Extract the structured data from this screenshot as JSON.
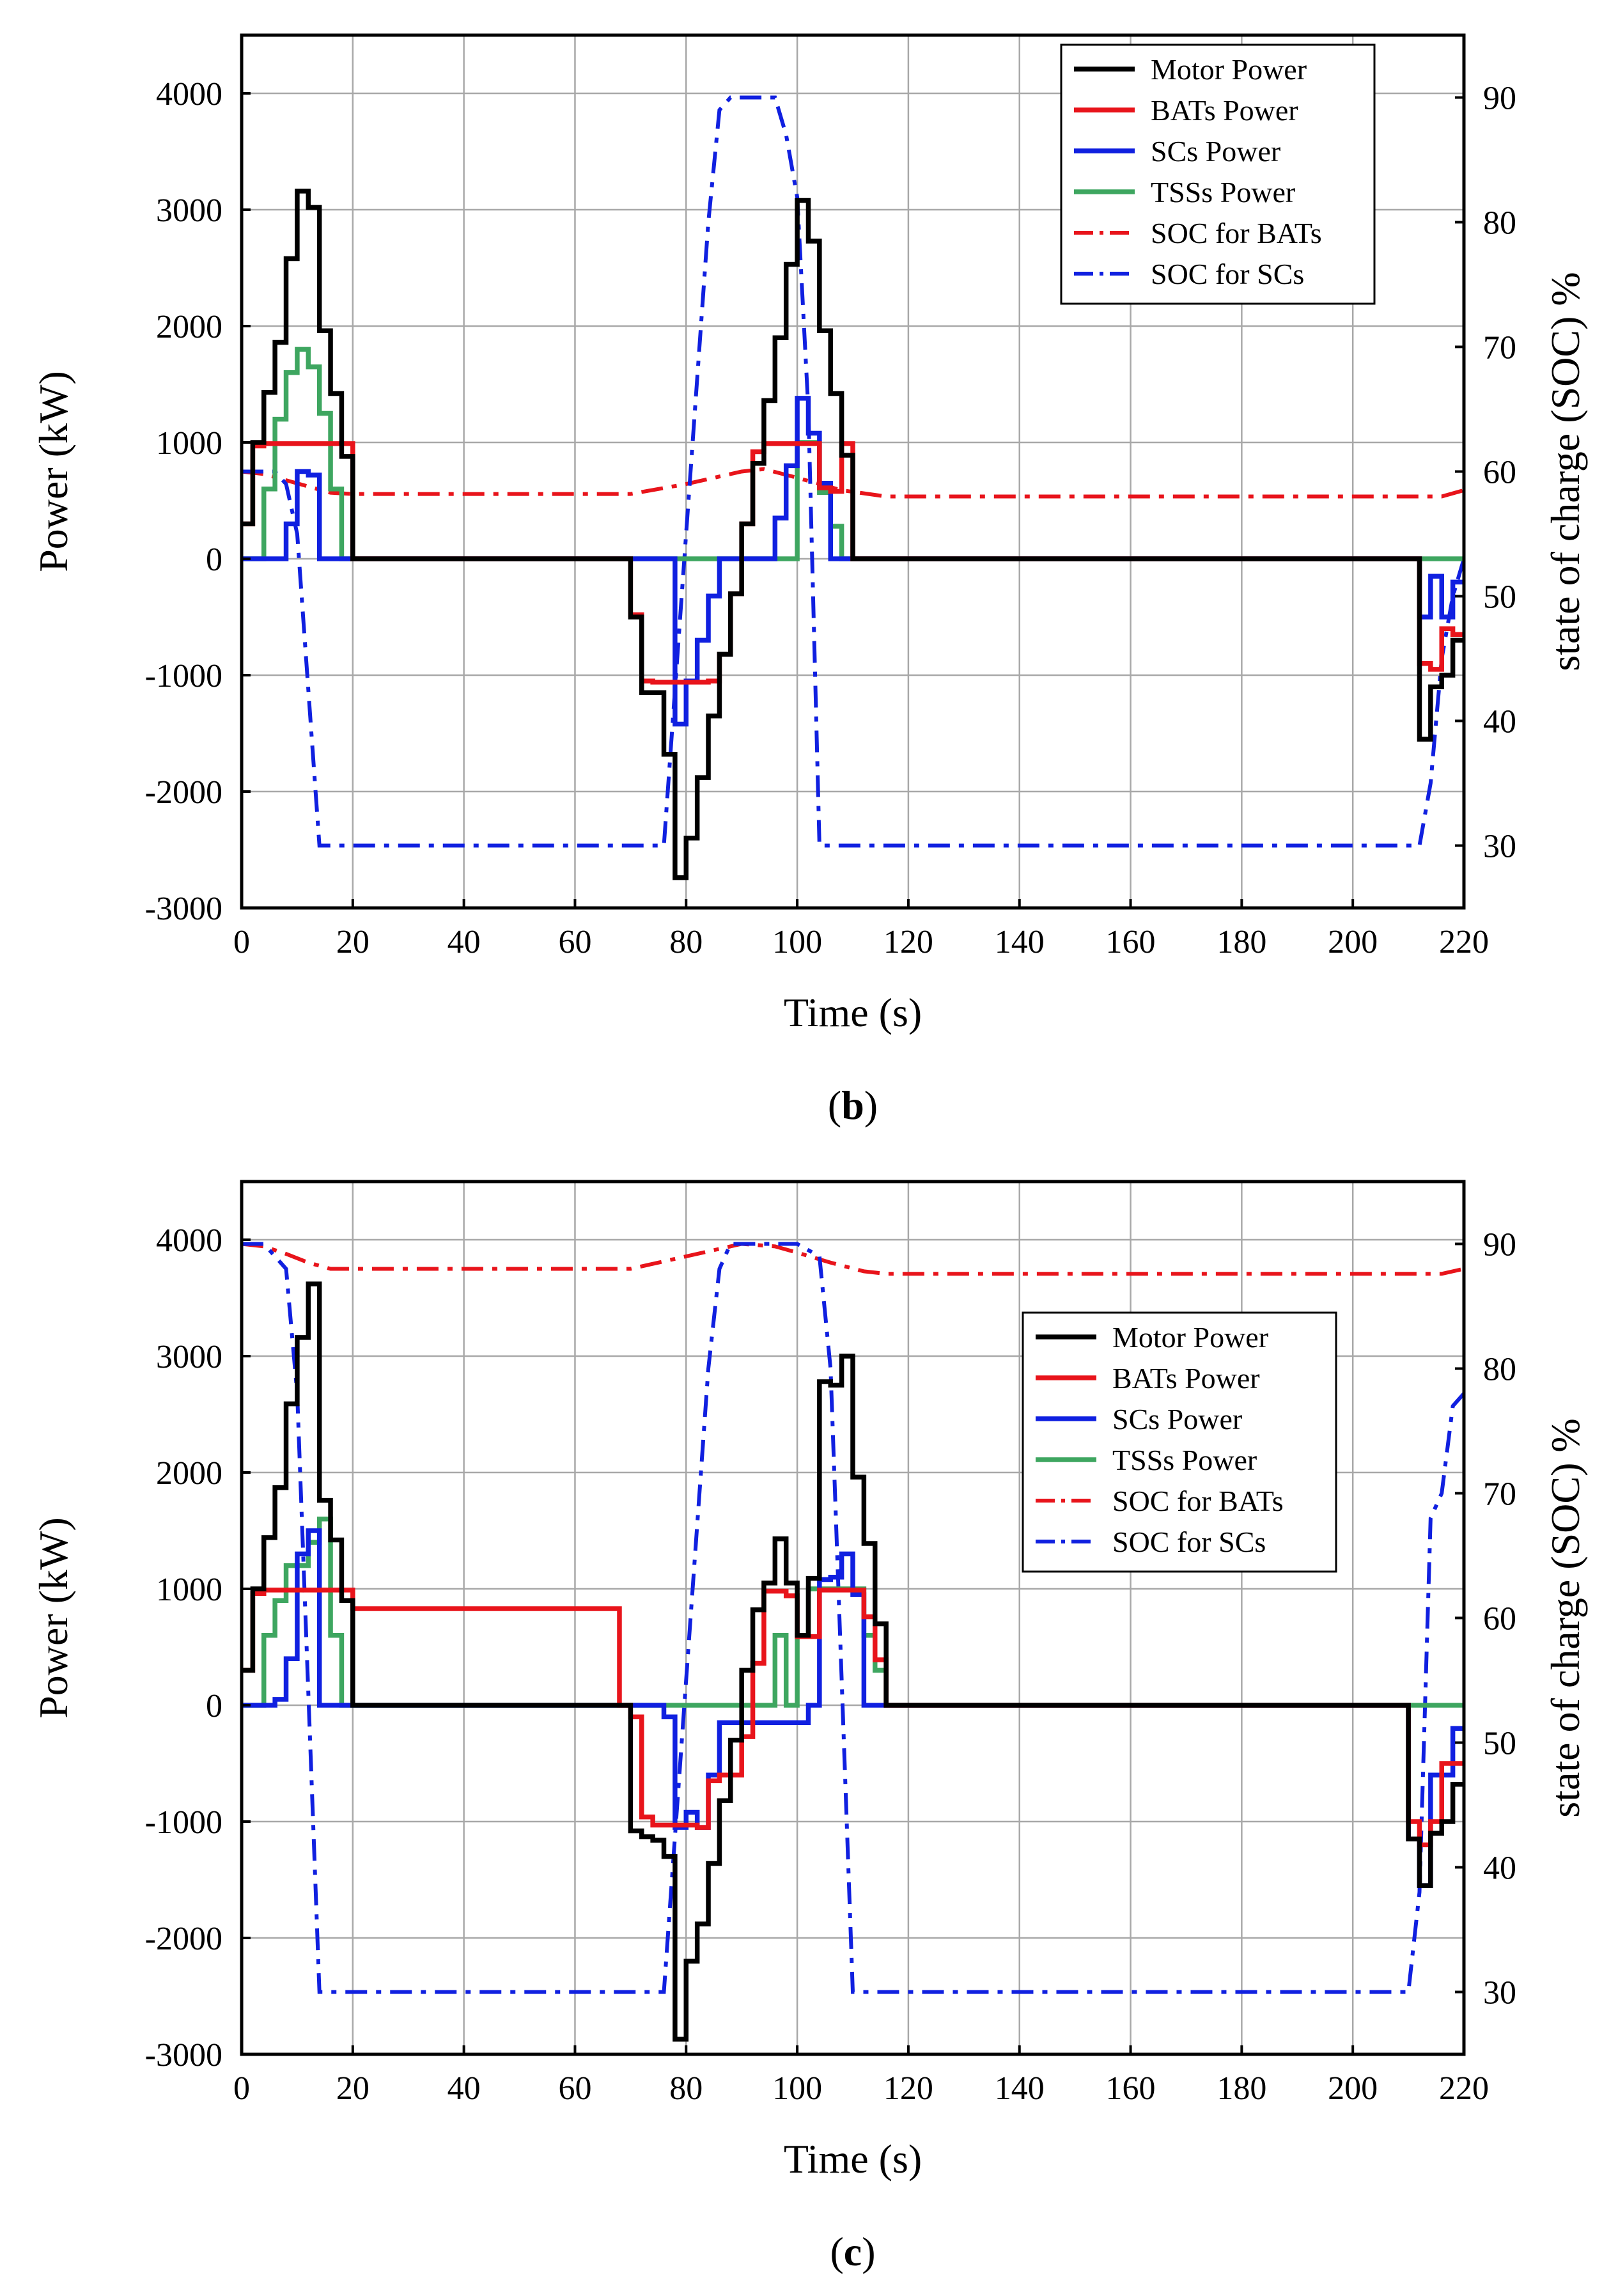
{
  "chart_data": [
    {
      "id": "b",
      "type": "line",
      "panel_label": "b",
      "xlabel": "Time (s)",
      "ylabel": "Power (kW)",
      "y2label": "state of charge (SOC) %",
      "xlim": [
        0,
        220
      ],
      "ylim": [
        -3000,
        4500
      ],
      "y2lim": [
        25,
        95
      ],
      "xticks": [
        0,
        20,
        40,
        60,
        80,
        100,
        120,
        140,
        160,
        180,
        200,
        220
      ],
      "yticks": [
        -3000,
        -2000,
        -1000,
        0,
        1000,
        2000,
        3000,
        4000
      ],
      "y2ticks": [
        30,
        40,
        50,
        60,
        70,
        80,
        90
      ],
      "grid": true,
      "legend": {
        "position": "top-right"
      },
      "series": [
        {
          "name": "Motor Power",
          "axis": "y",
          "style": "solid",
          "color": "#000000",
          "step": true,
          "x": [
            0,
            2,
            4,
            6,
            8,
            10,
            12,
            14,
            16,
            18,
            20,
            70,
            72,
            74,
            76,
            78,
            80,
            82,
            84,
            86,
            88,
            90,
            92,
            94,
            96,
            98,
            100,
            102,
            104,
            106,
            108,
            110,
            212,
            214,
            216,
            218,
            220
          ],
          "y": [
            300,
            1000,
            1430,
            1860,
            2580,
            3160,
            3020,
            1960,
            1420,
            880,
            0,
            -500,
            -1150,
            -1150,
            -1680,
            -2740,
            -2400,
            -1880,
            -1350,
            -820,
            -300,
            300,
            820,
            1360,
            1900,
            2530,
            3080,
            2730,
            1960,
            1420,
            890,
            0,
            -1550,
            -1100,
            -1000,
            -700,
            -700
          ]
        },
        {
          "name": "BATs Power",
          "axis": "y",
          "style": "solid",
          "color": "#e8141b",
          "step": true,
          "x": [
            0,
            2,
            4,
            20,
            70,
            72,
            74,
            84,
            86,
            88,
            90,
            92,
            94,
            104,
            106,
            108,
            110,
            212,
            214,
            216,
            218,
            220
          ],
          "y": [
            300,
            970,
            990,
            0,
            -480,
            -1050,
            -1060,
            -1050,
            -820,
            -300,
            300,
            920,
            990,
            610,
            580,
            990,
            0,
            -900,
            -950,
            -600,
            -650,
            -650
          ]
        },
        {
          "name": "SCs Power",
          "axis": "y",
          "style": "solid",
          "color": "#1020e0",
          "step": true,
          "x": [
            0,
            8,
            10,
            12,
            14,
            16,
            78,
            80,
            82,
            84,
            86,
            94,
            96,
            98,
            100,
            102,
            104,
            106,
            108,
            212,
            214,
            216,
            218,
            220
          ],
          "y": [
            0,
            300,
            750,
            720,
            0,
            0,
            -1420,
            -1050,
            -700,
            -320,
            0,
            0,
            350,
            800,
            1380,
            1080,
            650,
            0,
            0,
            -500,
            -150,
            -500,
            -200,
            -200
          ]
        },
        {
          "name": "TSSs Power",
          "axis": "y",
          "style": "solid",
          "color": "#3ea660",
          "step": true,
          "x": [
            0,
            4,
            6,
            8,
            10,
            12,
            14,
            16,
            18,
            98,
            100,
            102,
            104,
            106,
            108,
            220
          ],
          "y": [
            0,
            600,
            1200,
            1600,
            1800,
            1650,
            1250,
            600,
            0,
            0,
            1000,
            1000,
            570,
            280,
            0,
            0
          ]
        },
        {
          "name": "SOC for BATs",
          "axis": "y2",
          "style": "dashdot",
          "color": "#e8141b",
          "step": false,
          "x": [
            0,
            4,
            8,
            12,
            16,
            20,
            30,
            50,
            70,
            80,
            90,
            94,
            100,
            108,
            116,
            140,
            180,
            212,
            216,
            220
          ],
          "y": [
            60,
            59.8,
            59.3,
            58.8,
            58.3,
            58.2,
            58.2,
            58.2,
            58.2,
            59,
            60,
            60.2,
            59.5,
            58.5,
            58,
            58,
            58,
            58,
            58,
            58.5
          ]
        },
        {
          "name": "SOC for SCs",
          "axis": "y2",
          "style": "dashdot",
          "color": "#1020e0",
          "step": false,
          "x": [
            0,
            6,
            8,
            10,
            14,
            20,
            40,
            60,
            76,
            80,
            84,
            86,
            88,
            92,
            96,
            98,
            100,
            102,
            104,
            110,
            140,
            180,
            212,
            214,
            216,
            218,
            220
          ],
          "y": [
            60,
            60,
            59,
            55,
            30,
            30,
            30,
            30,
            30,
            55,
            80,
            89,
            90,
            90,
            90,
            87,
            82,
            65,
            30,
            30,
            30,
            30,
            30,
            35,
            45,
            50,
            53
          ]
        }
      ]
    },
    {
      "id": "c",
      "type": "line",
      "panel_label": "c",
      "xlabel": "Time (s)",
      "ylabel": "Power (kW)",
      "y2label": "state of charge (SOC) %",
      "xlim": [
        0,
        220
      ],
      "ylim": [
        -3000,
        4500
      ],
      "y2lim": [
        25,
        95
      ],
      "xticks": [
        0,
        20,
        40,
        60,
        80,
        100,
        120,
        140,
        160,
        180,
        200,
        220
      ],
      "yticks": [
        -3000,
        -2000,
        -1000,
        0,
        1000,
        2000,
        3000,
        4000
      ],
      "y2ticks": [
        30,
        40,
        50,
        60,
        70,
        80,
        90
      ],
      "grid": true,
      "legend": {
        "position": "center-right"
      },
      "series": [
        {
          "name": "Motor Power",
          "axis": "y",
          "style": "solid",
          "color": "#000000",
          "step": true,
          "x": [
            0,
            2,
            4,
            6,
            8,
            10,
            12,
            14,
            16,
            18,
            20,
            70,
            72,
            74,
            76,
            78,
            80,
            82,
            84,
            86,
            88,
            90,
            92,
            94,
            96,
            98,
            100,
            102,
            104,
            106,
            108,
            110,
            112,
            114,
            116,
            210,
            212,
            214,
            216,
            218,
            220
          ],
          "y": [
            300,
            1000,
            1440,
            1870,
            2590,
            3160,
            3620,
            1760,
            1420,
            900,
            0,
            -1080,
            -1130,
            -1160,
            -1300,
            -2870,
            -2200,
            -1880,
            -1360,
            -820,
            -300,
            300,
            820,
            1050,
            1430,
            1050,
            600,
            1090,
            2780,
            2750,
            3000,
            1960,
            1390,
            700,
            0,
            -1150,
            -1550,
            -1100,
            -1000,
            -680,
            -680
          ]
        },
        {
          "name": "BATs Power",
          "axis": "y",
          "style": "solid",
          "color": "#e8141b",
          "step": true,
          "x": [
            0,
            2,
            4,
            20,
            68,
            70,
            72,
            74,
            82,
            84,
            86,
            90,
            92,
            94,
            96,
            98,
            100,
            104,
            106,
            108,
            110,
            112,
            114,
            116,
            210,
            212,
            214,
            216,
            218,
            220
          ],
          "y": [
            300,
            960,
            990,
            830,
            0,
            -100,
            -960,
            -1030,
            -1050,
            -650,
            -600,
            -270,
            360,
            980,
            980,
            940,
            590,
            990,
            990,
            990,
            990,
            760,
            390,
            0,
            -1000,
            -1200,
            -1000,
            -500,
            -500,
            -500
          ]
        },
        {
          "name": "SCs Power",
          "axis": "y",
          "style": "solid",
          "color": "#1020e0",
          "step": true,
          "x": [
            0,
            6,
            8,
            10,
            12,
            14,
            16,
            76,
            78,
            80,
            82,
            84,
            86,
            102,
            104,
            106,
            108,
            110,
            112,
            210,
            212,
            214,
            216,
            218,
            220
          ],
          "y": [
            0,
            50,
            400,
            1300,
            1500,
            0,
            0,
            -100,
            -1050,
            -920,
            -1050,
            -600,
            -150,
            0,
            1080,
            1100,
            1300,
            950,
            0,
            -1150,
            -1550,
            -600,
            -600,
            -200,
            -200
          ]
        },
        {
          "name": "TSSs Power",
          "axis": "y",
          "style": "solid",
          "color": "#3ea660",
          "step": true,
          "x": [
            0,
            4,
            6,
            8,
            12,
            14,
            16,
            18,
            20,
            94,
            96,
            98,
            100,
            102,
            112,
            114,
            116,
            220
          ],
          "y": [
            0,
            600,
            900,
            1200,
            1400,
            1600,
            600,
            0,
            0,
            0,
            600,
            0,
            600,
            1000,
            600,
            300,
            0,
            0
          ]
        },
        {
          "name": "SOC for BATs",
          "axis": "y2",
          "style": "dashdot",
          "color": "#e8141b",
          "step": false,
          "x": [
            0,
            4,
            8,
            12,
            16,
            20,
            40,
            60,
            70,
            80,
            90,
            96,
            100,
            106,
            112,
            116,
            140,
            180,
            212,
            216,
            220
          ],
          "y": [
            90,
            89.8,
            89.2,
            88.5,
            88,
            88,
            88,
            88,
            88,
            89,
            90,
            89.8,
            89.3,
            88.5,
            87.8,
            87.6,
            87.6,
            87.6,
            87.6,
            87.6,
            88
          ]
        },
        {
          "name": "SOC for SCs",
          "axis": "y2",
          "style": "dashdot",
          "color": "#1020e0",
          "step": false,
          "x": [
            0,
            4,
            8,
            10,
            14,
            20,
            40,
            60,
            76,
            80,
            84,
            86,
            88,
            92,
            96,
            100,
            104,
            106,
            110,
            140,
            180,
            210,
            212,
            214,
            216,
            218,
            220
          ],
          "y": [
            90,
            90,
            88,
            78,
            30,
            30,
            30,
            30,
            30,
            55,
            80,
            88,
            90,
            90,
            90,
            90,
            89,
            80,
            30,
            30,
            30,
            30,
            38,
            68,
            70,
            77,
            78
          ]
        }
      ]
    }
  ]
}
